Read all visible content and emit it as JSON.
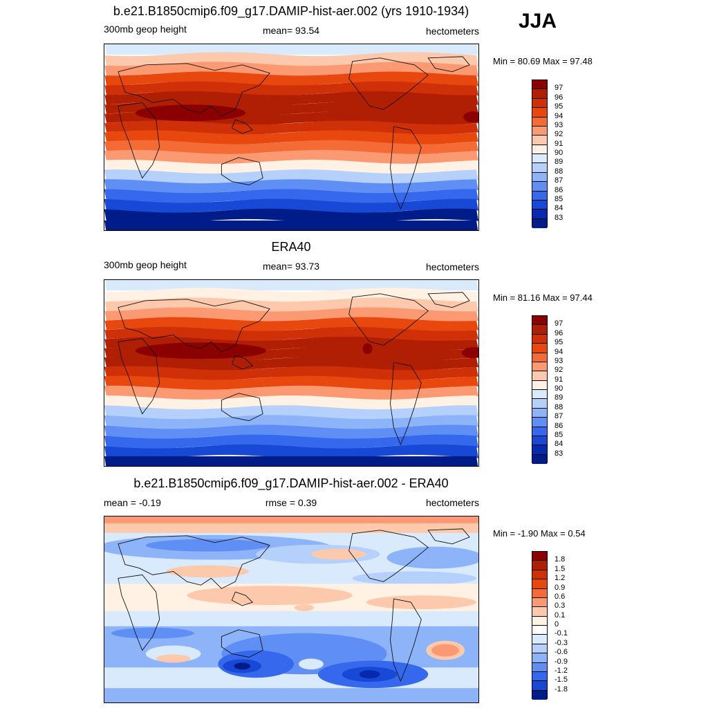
{
  "season": "JJA",
  "panels": [
    {
      "title": "b.e21.B1850cmip6.f09_g17.DAMIP-hist-aer.002 (yrs 1910-1934)",
      "left_label": "300mb geop height",
      "center_label": "mean=  93.54",
      "right_label": "hectometers",
      "minmax": "Min =  80.69 Max =  97.48"
    },
    {
      "title": "ERA40",
      "left_label": "300mb geop height",
      "center_label": "mean=  93.73",
      "right_label": "hectometers",
      "minmax": "Min =  81.16 Max =  97.44"
    },
    {
      "title": "b.e21.B1850cmip6.f09_g17.DAMIP-hist-aer.002 - ERA40",
      "left_label": "mean =  -0.19",
      "center_label": "rmse =   0.39",
      "right_label": "hectometers",
      "minmax": "Min =  -1.90 Max =   0.54"
    }
  ],
  "colorbars": {
    "absolute": {
      "labels": [
        "97",
        "96",
        "95",
        "94",
        "93",
        "92",
        "91",
        "90",
        "89",
        "88",
        "87",
        "86",
        "85",
        "84",
        "83"
      ],
      "colors": [
        "#8b0000",
        "#b01e04",
        "#d03008",
        "#e8480e",
        "#f56b36",
        "#fb9a72",
        "#fdc9ad",
        "#fff1e4",
        "#d9eafc",
        "#b4d0fb",
        "#8db3f9",
        "#5f8ff5",
        "#3568ec",
        "#1848d6",
        "#0629b0",
        "#001c88"
      ]
    },
    "difference": {
      "labels": [
        "1.8",
        "1.5",
        "1.2",
        "0.9",
        "0.6",
        "0.3",
        "0.1",
        "0",
        "-0.1",
        "-0.3",
        "-0.6",
        "-0.9",
        "-1.2",
        "-1.5",
        "-1.8"
      ],
      "colors": [
        "#8b0000",
        "#b01e04",
        "#d03008",
        "#e8480e",
        "#f56b36",
        "#fb9a72",
        "#fdc9ad",
        "#fff1e4",
        "#ffffff",
        "#d9eafc",
        "#b4d0fb",
        "#8db3f9",
        "#5f8ff5",
        "#3568ec",
        "#1848d6",
        "#001c88"
      ]
    }
  },
  "map_fields": {
    "model_band_colors": [
      "#d9eafc",
      "#fdc9ad",
      "#fb9a72",
      "#e8480e",
      "#d03008",
      "#b01e04",
      "#b01e04",
      "#b01e04",
      "#d03008",
      "#e8480e",
      "#f56b36",
      "#fb9a72",
      "#fff1e4",
      "#b4d0fb",
      "#5f8ff5",
      "#3568ec",
      "#1848d6",
      "#001c88",
      "#001c88"
    ],
    "era_band_colors": [
      "#d9eafc",
      "#fff1e4",
      "#fdc9ad",
      "#fb9a72",
      "#e8480e",
      "#d03008",
      "#b01e04",
      "#b01e04",
      "#b01e04",
      "#d03008",
      "#e8480e",
      "#fb9a72",
      "#fff1e4",
      "#b4d0fb",
      "#8db3f9",
      "#5f8ff5",
      "#3568ec",
      "#1848d6",
      "#001c88"
    ],
    "diff_background": "#d9eafc"
  }
}
